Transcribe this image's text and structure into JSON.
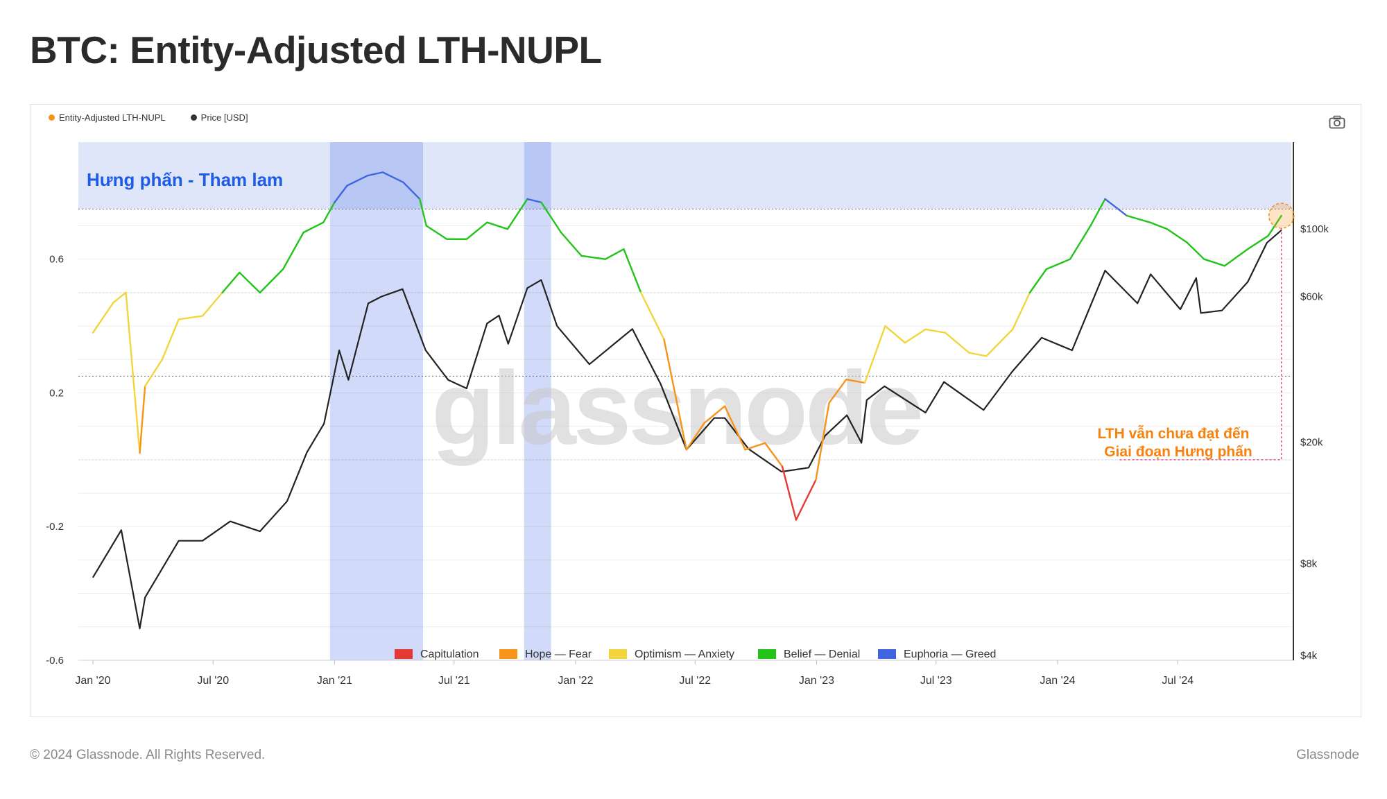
{
  "title": "BTC: Entity-Adjusted LTH-NUPL",
  "legend_top": [
    {
      "label": "Entity-Adjusted LTH-NUPL",
      "color": "#f7931a"
    },
    {
      "label": "Price [USD]",
      "color": "#333333"
    }
  ],
  "footer": {
    "copyright": "© 2024 Glassnode. All Rights Reserved.",
    "brand": "Glassnode"
  },
  "chart_data": {
    "type": "line",
    "watermark": "glassnode",
    "x_ticks": [
      "Jan '20",
      "Jul '20",
      "Jan '21",
      "Jul '21",
      "Jan '22",
      "Jul '22",
      "Jan '23",
      "Jul '23",
      "Jan '24",
      "Jul '24"
    ],
    "y_left_ticks": [
      "0.6",
      "0.2",
      "-0.2",
      "-0.6"
    ],
    "y_left_range": [
      -0.6,
      0.95
    ],
    "y_right_ticks": [
      "$100k",
      "$60k",
      "$20k",
      "$8k",
      "$4k"
    ],
    "y_right_scale": "log",
    "zones": [
      {
        "name": "Capitulation",
        "color": "#e53935",
        "range": [
          -1,
          0
        ]
      },
      {
        "name": "Hope — Fear",
        "color": "#f7931a",
        "range": [
          0,
          0.25
        ]
      },
      {
        "name": "Optimism — Anxiety",
        "color": "#f2d53c",
        "range": [
          0.25,
          0.5
        ]
      },
      {
        "name": "Belief — Denial",
        "color": "#22c41a",
        "range": [
          0.5,
          0.75
        ]
      },
      {
        "name": "Euphoria — Greed",
        "color": "#3f66e0",
        "range": [
          0.75,
          1
        ]
      }
    ],
    "euphoria_periods": [
      [
        "2020-12-25",
        "2021-05-15"
      ],
      [
        "2021-10-15",
        "2021-11-25"
      ]
    ],
    "annotations": {
      "euphoria_label": "Hưng phấn - Tham lam",
      "note_line1": "LTH vẫn chưa đạt đến",
      "note_line2": "Giai đoạn Hưng phấn"
    },
    "nupl_series": {
      "name": "Entity-Adjusted LTH-NUPL",
      "x": [
        "2020-01-01",
        "2020-02-01",
        "2020-02-20",
        "2020-03-12",
        "2020-03-20",
        "2020-04-15",
        "2020-05-10",
        "2020-06-15",
        "2020-07-15",
        "2020-08-10",
        "2020-09-10",
        "2020-10-15",
        "2020-11-15",
        "2020-12-15",
        "2021-01-01",
        "2021-01-20",
        "2021-02-20",
        "2021-03-15",
        "2021-04-15",
        "2021-05-10",
        "2021-05-20",
        "2021-06-20",
        "2021-07-20",
        "2021-08-20",
        "2021-09-20",
        "2021-10-20",
        "2021-11-10",
        "2021-12-10",
        "2022-01-10",
        "2022-02-15",
        "2022-03-15",
        "2022-04-10",
        "2022-05-15",
        "2022-06-18",
        "2022-07-15",
        "2022-08-15",
        "2022-09-15",
        "2022-10-15",
        "2022-11-10",
        "2022-12-01",
        "2022-12-31",
        "2023-01-20",
        "2023-02-15",
        "2023-03-15",
        "2023-04-15",
        "2023-05-15",
        "2023-06-15",
        "2023-07-15",
        "2023-08-20",
        "2023-09-15",
        "2023-10-25",
        "2023-11-20",
        "2023-12-15",
        "2024-01-20",
        "2024-02-20",
        "2024-03-13",
        "2024-04-15",
        "2024-05-20",
        "2024-06-15",
        "2024-07-15",
        "2024-08-10",
        "2024-09-10",
        "2024-10-15",
        "2024-11-15",
        "2024-12-05"
      ],
      "values": [
        0.38,
        0.47,
        0.5,
        0.02,
        0.22,
        0.3,
        0.42,
        0.43,
        0.5,
        0.56,
        0.5,
        0.57,
        0.68,
        0.71,
        0.77,
        0.82,
        0.85,
        0.86,
        0.83,
        0.78,
        0.7,
        0.66,
        0.66,
        0.71,
        0.69,
        0.78,
        0.77,
        0.68,
        0.61,
        0.6,
        0.63,
        0.5,
        0.36,
        0.03,
        0.11,
        0.16,
        0.03,
        0.05,
        -0.02,
        -0.18,
        -0.06,
        0.17,
        0.24,
        0.23,
        0.4,
        0.35,
        0.39,
        0.38,
        0.32,
        0.31,
        0.39,
        0.5,
        0.57,
        0.6,
        0.7,
        0.78,
        0.73,
        0.71,
        0.69,
        0.65,
        0.6,
        0.58,
        0.63,
        0.67,
        0.73
      ]
    },
    "price_series": {
      "name": "Price [USD]",
      "x": [
        "2020-01-01",
        "2020-02-13",
        "2020-03-12",
        "2020-03-20",
        "2020-05-10",
        "2020-06-15",
        "2020-07-27",
        "2020-09-10",
        "2020-10-21",
        "2020-11-20",
        "2020-12-16",
        "2021-01-08",
        "2021-01-22",
        "2021-02-21",
        "2021-03-13",
        "2021-04-14",
        "2021-05-19",
        "2021-06-22",
        "2021-07-20",
        "2021-08-20",
        "2021-09-07",
        "2021-09-21",
        "2021-10-20",
        "2021-11-10",
        "2021-12-04",
        "2022-01-22",
        "2022-03-28",
        "2022-05-10",
        "2022-06-18",
        "2022-07-30",
        "2022-08-15",
        "2022-09-20",
        "2022-11-09",
        "2022-12-20",
        "2023-01-14",
        "2023-02-16",
        "2023-03-10",
        "2023-03-18",
        "2023-04-14",
        "2023-06-15",
        "2023-07-13",
        "2023-09-11",
        "2023-10-24",
        "2023-12-08",
        "2024-01-23",
        "2024-03-13",
        "2024-05-01",
        "2024-05-21",
        "2024-07-05",
        "2024-07-29",
        "2024-08-05",
        "2024-09-06",
        "2024-10-15",
        "2024-11-13",
        "2024-12-05"
      ],
      "values": [
        7200,
        10300,
        4900,
        6200,
        9500,
        9500,
        11000,
        10200,
        12800,
        18500,
        23000,
        40000,
        32000,
        57000,
        60000,
        63500,
        40000,
        32000,
        30000,
        49000,
        52000,
        42000,
        64000,
        68000,
        48000,
        36000,
        47000,
        31000,
        18900,
        24000,
        24000,
        19000,
        16000,
        16500,
        21000,
        24500,
        19900,
        27500,
        30500,
        25000,
        31500,
        25500,
        34000,
        44000,
        40000,
        73000,
        57000,
        71000,
        54500,
        69000,
        53000,
        54000,
        67000,
        90000,
        99000
      ]
    }
  }
}
